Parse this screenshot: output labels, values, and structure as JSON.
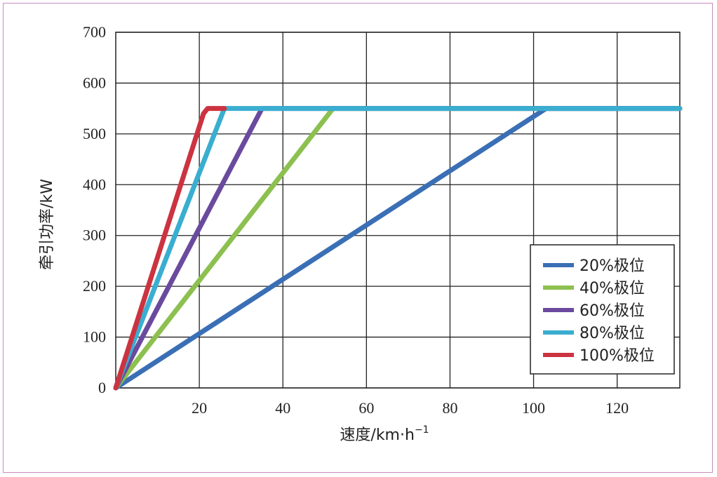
{
  "chart_data": {
    "type": "line",
    "title": "",
    "xlabel": "速度/km·h",
    "xlabel_sup": "−1",
    "ylabel": "牵引功率/kW",
    "xlim": [
      0,
      135
    ],
    "ylim": [
      0,
      700
    ],
    "xticks": [
      20,
      40,
      60,
      80,
      100,
      120
    ],
    "yticks": [
      0,
      100,
      200,
      300,
      400,
      500,
      600,
      700
    ],
    "grid": true,
    "legend_position": "bottom-right",
    "series": [
      {
        "name": "20%极位",
        "color": "#3a6fb5",
        "points": [
          [
            0,
            0
          ],
          [
            103,
            550
          ],
          [
            135,
            550
          ]
        ]
      },
      {
        "name": "40%极位",
        "color": "#8cc04f",
        "points": [
          [
            0,
            0
          ],
          [
            52,
            550
          ],
          [
            135,
            550
          ]
        ]
      },
      {
        "name": "60%极位",
        "color": "#6a4a9e",
        "points": [
          [
            0,
            0
          ],
          [
            35,
            550
          ],
          [
            135,
            550
          ]
        ]
      },
      {
        "name": "80%极位",
        "color": "#3aaed0",
        "points": [
          [
            0,
            0
          ],
          [
            26,
            550
          ],
          [
            135,
            550
          ]
        ]
      },
      {
        "name": "100%极位",
        "color": "#cc3340",
        "points": [
          [
            0,
            0
          ],
          [
            21,
            540
          ],
          [
            22,
            550
          ],
          [
            26,
            550
          ]
        ]
      }
    ]
  }
}
